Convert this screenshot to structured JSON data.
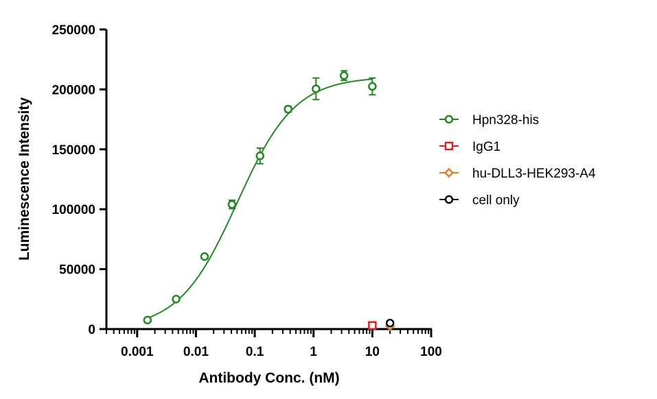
{
  "chart_data": {
    "type": "scatter",
    "xlabel": "Antibody Conc. (nM)",
    "ylabel": "Luminescence Intensity",
    "x_scale": "log",
    "xlim": [
      0.0003,
      100
    ],
    "ylim": [
      0,
      250000
    ],
    "x_ticks": [
      0.001,
      0.01,
      0.1,
      1,
      10,
      100
    ],
    "x_tick_labels": [
      "0.001",
      "0.01",
      "0.1",
      "1",
      "10",
      "100"
    ],
    "y_ticks": [
      0,
      50000,
      100000,
      150000,
      200000,
      250000
    ],
    "y_tick_labels": [
      "0",
      "50000",
      "100000",
      "150000",
      "200000",
      "250000"
    ],
    "grid": false,
    "legend_position": "right",
    "series": [
      {
        "name": "Hpn328-his",
        "color": "#1e8a1e",
        "marker": "circle",
        "fit": "sigmoidal",
        "x": [
          0.0015,
          0.0046,
          0.014,
          0.041,
          0.123,
          0.37,
          1.1,
          3.3,
          10
        ],
        "y": [
          7500,
          25000,
          60500,
          104000,
          144500,
          183500,
          200500,
          211500,
          202500
        ],
        "error": [
          0,
          0,
          0,
          3500,
          6500,
          2500,
          9000,
          4000,
          7000
        ]
      },
      {
        "name": "IgG1",
        "color": "#e02020",
        "marker": "square",
        "x": [
          10
        ],
        "y": [
          3000
        ],
        "error": [
          0
        ]
      },
      {
        "name": "hu-DLL3-HEK293-A4",
        "color": "#f07820",
        "marker": "diamond",
        "x": [
          20
        ],
        "y": [
          2500
        ],
        "error": [
          0
        ]
      },
      {
        "name": "cell only",
        "color": "#000000",
        "marker": "circle",
        "x": [
          20
        ],
        "y": [
          5000
        ],
        "error": [
          0
        ]
      }
    ]
  }
}
